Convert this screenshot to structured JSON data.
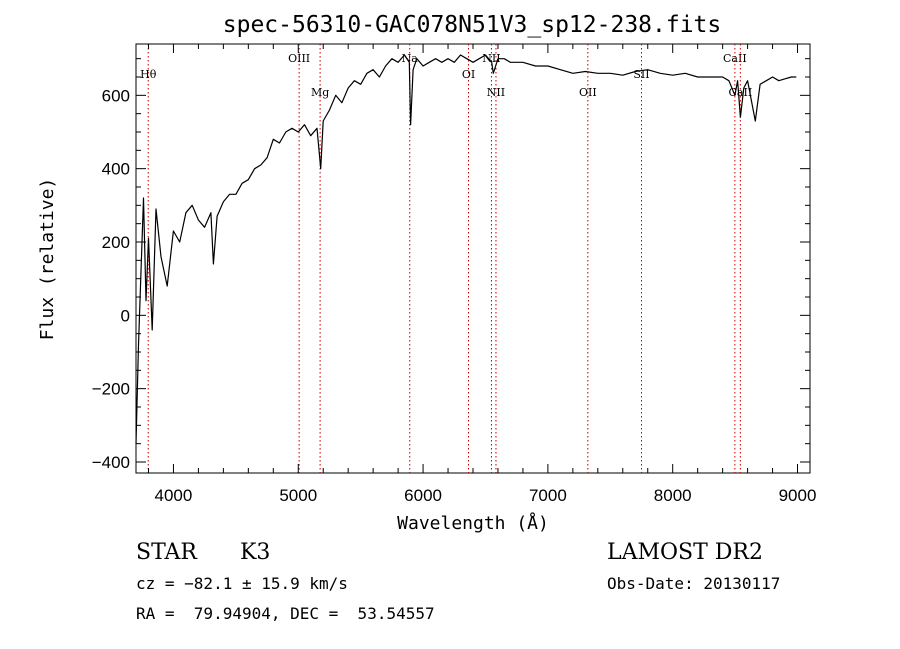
{
  "chart_data": {
    "type": "line",
    "title": "spec-56310-GAC078N51V3_sp12-238.fits",
    "xlabel": "Wavelength (Å)",
    "ylabel": "Flux (relative)",
    "xlim": [
      3700,
      9100
    ],
    "ylim": [
      -430,
      740
    ],
    "xticks": [
      4000,
      5000,
      6000,
      7000,
      8000,
      9000
    ],
    "yticks": [
      -400,
      -200,
      0,
      200,
      400,
      600
    ],
    "xtick_labels": [
      "4000",
      "5000",
      "6000",
      "7000",
      "8000",
      "9000"
    ],
    "ytick_labels": [
      "−400",
      "−200",
      "0",
      "200",
      "400",
      "600"
    ],
    "grid": false,
    "series": [
      {
        "color": "#000000",
        "x": [
          3700,
          3720,
          3740,
          3760,
          3780,
          3800,
          3830,
          3860,
          3900,
          3950,
          4000,
          4050,
          4100,
          4150,
          4200,
          4250,
          4300,
          4320,
          4350,
          4400,
          4450,
          4500,
          4550,
          4600,
          4650,
          4700,
          4750,
          4800,
          4850,
          4900,
          4950,
          5000,
          5050,
          5100,
          5150,
          5180,
          5200,
          5250,
          5300,
          5350,
          5400,
          5450,
          5500,
          5550,
          5600,
          5650,
          5700,
          5750,
          5800,
          5850,
          5890,
          5900,
          5920,
          5950,
          6000,
          6050,
          6100,
          6150,
          6200,
          6250,
          6300,
          6350,
          6400,
          6450,
          6500,
          6550,
          6563,
          6600,
          6650,
          6700,
          6800,
          6900,
          7000,
          7100,
          7200,
          7300,
          7400,
          7500,
          7600,
          7700,
          7800,
          7900,
          8000,
          8100,
          8200,
          8300,
          8400,
          8450,
          8498,
          8520,
          8542,
          8570,
          8600,
          8662,
          8700,
          8750,
          8800,
          8850,
          8900,
          8950,
          8990
        ],
        "y": [
          -350,
          -80,
          120,
          320,
          40,
          210,
          -40,
          290,
          160,
          80,
          230,
          200,
          280,
          300,
          260,
          240,
          280,
          140,
          270,
          310,
          330,
          330,
          360,
          370,
          400,
          410,
          430,
          480,
          470,
          500,
          510,
          500,
          520,
          490,
          510,
          400,
          530,
          560,
          600,
          580,
          620,
          640,
          630,
          660,
          670,
          650,
          680,
          700,
          690,
          710,
          690,
          520,
          670,
          700,
          680,
          690,
          700,
          690,
          700,
          690,
          710,
          700,
          690,
          700,
          710,
          690,
          660,
          700,
          700,
          690,
          690,
          680,
          680,
          670,
          660,
          665,
          660,
          660,
          655,
          665,
          670,
          660,
          655,
          660,
          650,
          650,
          650,
          640,
          600,
          640,
          540,
          620,
          640,
          530,
          630,
          640,
          650,
          640,
          645,
          650,
          650
        ]
      }
    ],
    "lines": [
      {
        "label": "Hθ",
        "x": 3798
      },
      {
        "label": "OIII",
        "x": 5007
      },
      {
        "label": "Mg",
        "x": 5175
      },
      {
        "label": "Na",
        "x": 5893
      },
      {
        "label": "OI",
        "x": 6364
      },
      {
        "label": "NII",
        "x": 6548
      },
      {
        "label": "NII",
        "x": 6584
      },
      {
        "label": "OII",
        "x": 7320
      },
      {
        "label": "SII",
        "x": 7750
      },
      {
        "label": "CaII",
        "x": 8498
      },
      {
        "label": "CaII",
        "x": 8542
      }
    ]
  },
  "info": {
    "class_label": "STAR",
    "subclass_label": "K3",
    "cz": "cz = −82.1 ± 15.9 km/s",
    "radec": "RA =  79.94904, DEC =  53.54557",
    "survey": "LAMOST DR2",
    "obs_date": "Obs-Date: 20130117"
  }
}
